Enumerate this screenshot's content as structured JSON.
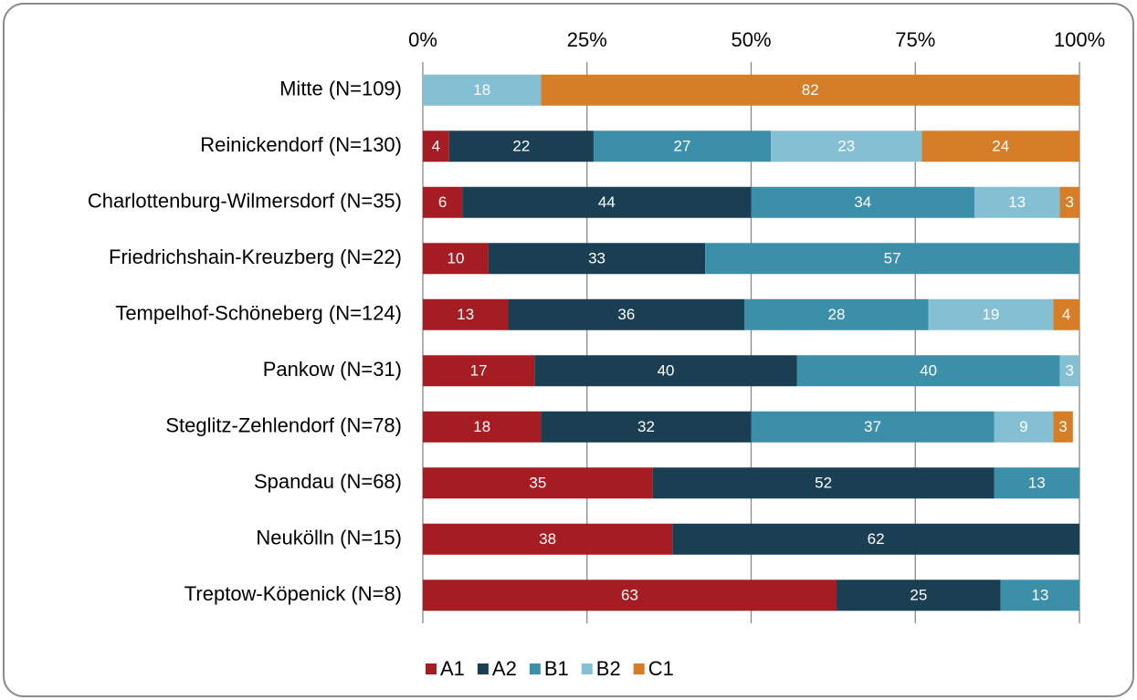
{
  "chart_data": {
    "type": "stacked_bar_horizontal",
    "categories": [
      "Mitte (N=109)",
      "Reinickendorf (N=130)",
      "Charlottenburg-Wilmersdorf (N=35)",
      "Friedrichshain-Kreuzberg (N=22)",
      "Tempelhof-Schöneberg (N=124)",
      "Pankow (N=31)",
      "Steglitz-Zehlendorf (N=78)",
      "Spandau (N=68)",
      "Neukölln (N=15)",
      "Treptow-Köpenick (N=8)"
    ],
    "series": [
      {
        "name": "A1",
        "color": "#a51c22",
        "values": [
          null,
          4,
          6,
          10,
          13,
          17,
          18,
          35,
          38,
          63
        ]
      },
      {
        "name": "A2",
        "color": "#1b3f52",
        "values": [
          null,
          22,
          44,
          33,
          36,
          40,
          32,
          52,
          62,
          25
        ]
      },
      {
        "name": "B1",
        "color": "#3b8fa8",
        "values": [
          null,
          27,
          34,
          57,
          28,
          40,
          37,
          13,
          null,
          13
        ]
      },
      {
        "name": "B2",
        "color": "#85bfd4",
        "values": [
          18,
          23,
          13,
          null,
          19,
          3,
          9,
          null,
          null,
          null
        ]
      },
      {
        "name": "C1",
        "color": "#d57d27",
        "values": [
          82,
          24,
          3,
          null,
          4,
          null,
          3,
          null,
          null,
          null
        ]
      }
    ],
    "xlim": [
      0,
      100
    ],
    "xticks": [
      {
        "value": 0,
        "label": "0%"
      },
      {
        "value": 25,
        "label": "25%"
      },
      {
        "value": 50,
        "label": "50%"
      },
      {
        "value": 75,
        "label": "75%"
      },
      {
        "value": 100,
        "label": "100%"
      }
    ],
    "grid": true,
    "legend": "bottom"
  }
}
